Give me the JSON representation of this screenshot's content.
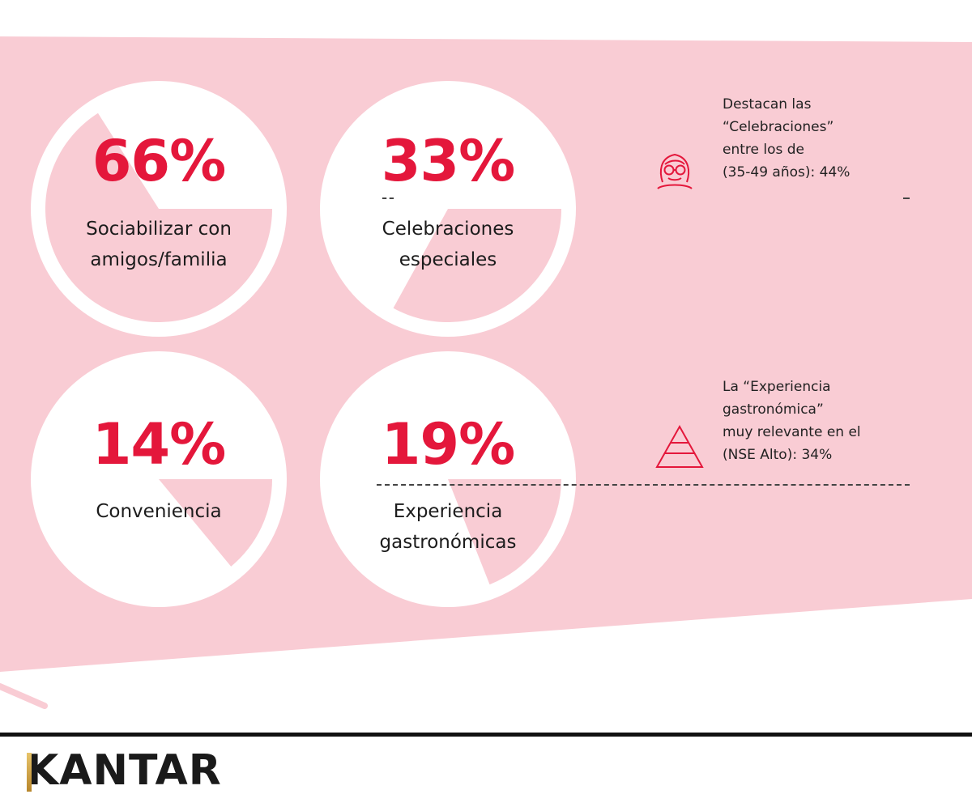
{
  "colors": {
    "accent": "#e4173b",
    "band": "#f9ccd4",
    "slice": "#f9ccd4",
    "circle": "#ffffff"
  },
  "chart_data": {
    "type": "pie",
    "items": [
      {
        "value": 66,
        "percent_label": "66%",
        "label": "Sociabilizar con\namigos/familia"
      },
      {
        "value": 33,
        "percent_label": "33%",
        "label": "Celebraciones\nespeciales"
      },
      {
        "value": 14,
        "percent_label": "14%",
        "label": "Conveniencia"
      },
      {
        "value": 19,
        "percent_label": "19%",
        "label": "Experiencia\ngastronómicas"
      }
    ]
  },
  "notes": [
    {
      "icon": "woman-glasses-icon",
      "text": "Destacan las\n“Celebraciones”\nentre los de\n(35-49 años): 44%"
    },
    {
      "icon": "pyramid-icon",
      "text": "La “Experiencia\ngastronómica”\nmuy relevante en el\n(NSE Alto): 34%"
    }
  ],
  "footer": {
    "brand": "KANTAR"
  }
}
